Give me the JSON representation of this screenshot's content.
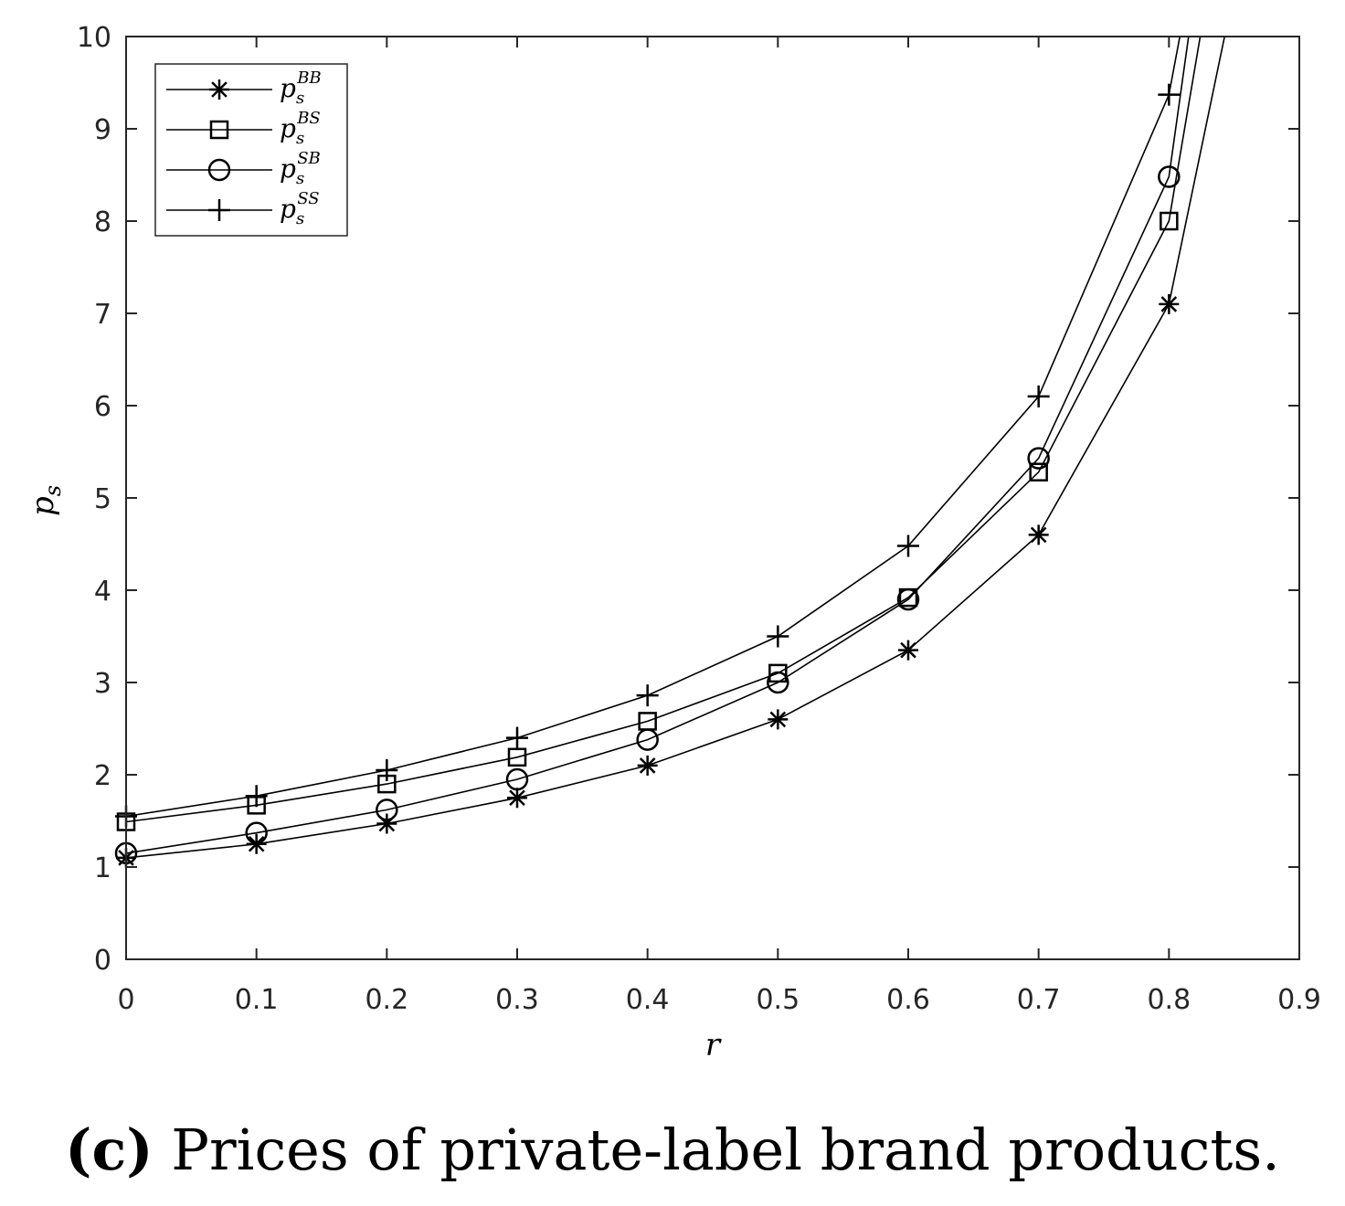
{
  "chart_data": {
    "type": "line",
    "title": "",
    "xlabel": "r",
    "ylabel": "p_s",
    "xlim": [
      0,
      0.9
    ],
    "ylim": [
      0,
      10
    ],
    "xticks": [
      0,
      0.1,
      0.2,
      0.3,
      0.4,
      0.5,
      0.6,
      0.7,
      0.8,
      0.9
    ],
    "yticks": [
      0,
      1,
      2,
      3,
      4,
      5,
      6,
      7,
      8,
      9,
      10
    ],
    "xtick_labels": [
      "0",
      "0.1",
      "0.2",
      "0.3",
      "0.4",
      "0.5",
      "0.6",
      "0.7",
      "0.8",
      "0.9"
    ],
    "ytick_labels": [
      "0",
      "1",
      "2",
      "3",
      "4",
      "5",
      "6",
      "7",
      "8",
      "9",
      "10"
    ],
    "grid": false,
    "legend_placement": "top-left",
    "series": [
      {
        "name": "p_s^BB",
        "symbol": "p",
        "sub": "s",
        "sup": "BB",
        "marker": "asterisk",
        "x": [
          0,
          0.1,
          0.2,
          0.3,
          0.4,
          0.5,
          0.6,
          0.7,
          0.8,
          0.85
        ],
        "y": [
          1.1,
          1.25,
          1.47,
          1.75,
          2.1,
          2.6,
          3.35,
          4.6,
          7.1,
          10.5
        ],
        "marker_count": 9
      },
      {
        "name": "p_s^BS",
        "symbol": "p",
        "sub": "s",
        "sup": "BS",
        "marker": "square",
        "x": [
          0,
          0.1,
          0.2,
          0.3,
          0.4,
          0.5,
          0.6,
          0.7,
          0.8,
          0.83
        ],
        "y": [
          1.49,
          1.67,
          1.9,
          2.19,
          2.58,
          3.1,
          3.92,
          5.28,
          8.0,
          10.5
        ],
        "marker_count": 9
      },
      {
        "name": "p_s^SB",
        "symbol": "p",
        "sub": "s",
        "sup": "SB",
        "marker": "circle",
        "x": [
          0,
          0.1,
          0.2,
          0.3,
          0.4,
          0.5,
          0.6,
          0.7,
          0.8,
          0.82
        ],
        "y": [
          1.15,
          1.37,
          1.62,
          1.95,
          2.38,
          3.0,
          3.9,
          5.43,
          8.48,
          10.5
        ],
        "marker_count": 9
      },
      {
        "name": "p_s^SS",
        "symbol": "p",
        "sub": "s",
        "sup": "SS",
        "marker": "plus",
        "x": [
          0,
          0.1,
          0.2,
          0.3,
          0.4,
          0.5,
          0.6,
          0.7,
          0.8,
          0.815
        ],
        "y": [
          1.55,
          1.77,
          2.05,
          2.4,
          2.86,
          3.5,
          4.48,
          6.1,
          9.37,
          10.5
        ],
        "marker_count": 9
      }
    ]
  },
  "caption": {
    "label": "(c)",
    "text": " Prices of private-label brand products."
  }
}
